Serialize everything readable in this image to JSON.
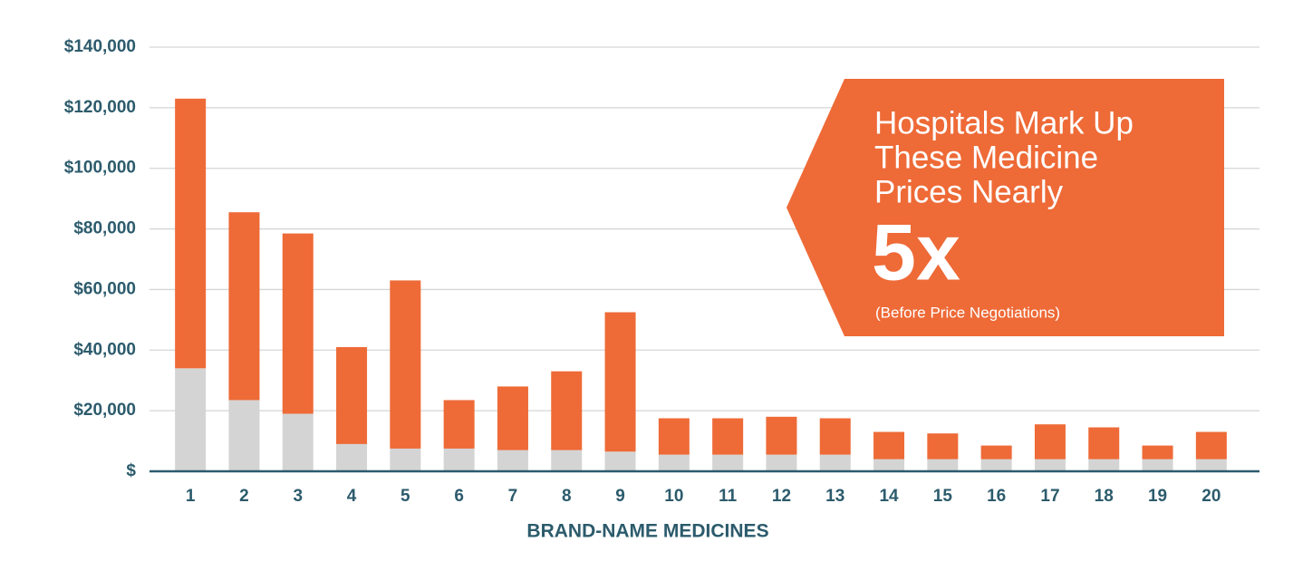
{
  "chart_data": {
    "type": "bar",
    "stacked": true,
    "x_label": "BRAND-NAME MEDICINES",
    "categories": [
      "1",
      "2",
      "3",
      "4",
      "5",
      "6",
      "7",
      "8",
      "9",
      "10",
      "11",
      "12",
      "13",
      "14",
      "15",
      "16",
      "17",
      "18",
      "19",
      "20"
    ],
    "series": [
      {
        "color": "#d4d4d4",
        "values": [
          34000,
          23500,
          19000,
          9000,
          7500,
          7500,
          7000,
          7000,
          6500,
          5500,
          5500,
          5500,
          5500,
          4000,
          4000,
          4000,
          4000,
          4000,
          4000,
          4000
        ]
      },
      {
        "color": "#ee6a37",
        "values": [
          89000,
          62000,
          59500,
          32000,
          55500,
          16000,
          21000,
          26000,
          46000,
          12000,
          12000,
          12500,
          12000,
          9000,
          8500,
          4500,
          11500,
          10500,
          4500,
          9000
        ]
      }
    ],
    "ylim": [
      0,
      140000
    ],
    "yticks": [
      {
        "value": 0,
        "label": "$"
      },
      {
        "value": 20000,
        "label": "$20,000"
      },
      {
        "value": 40000,
        "label": "$40,000"
      },
      {
        "value": 60000,
        "label": "$60,000"
      },
      {
        "value": 80000,
        "label": "$80,000"
      },
      {
        "value": 100000,
        "label": "$100,000"
      },
      {
        "value": 120000,
        "label": "$120,000"
      },
      {
        "value": 140000,
        "label": "$140,000"
      }
    ],
    "grid": true,
    "callout": {
      "lines": [
        "Hospitals Mark Up",
        "These Medicine",
        "Prices Nearly"
      ],
      "highlight": "5x",
      "note": "(Before Price Negotiations)",
      "color": "#ee6a37"
    }
  }
}
